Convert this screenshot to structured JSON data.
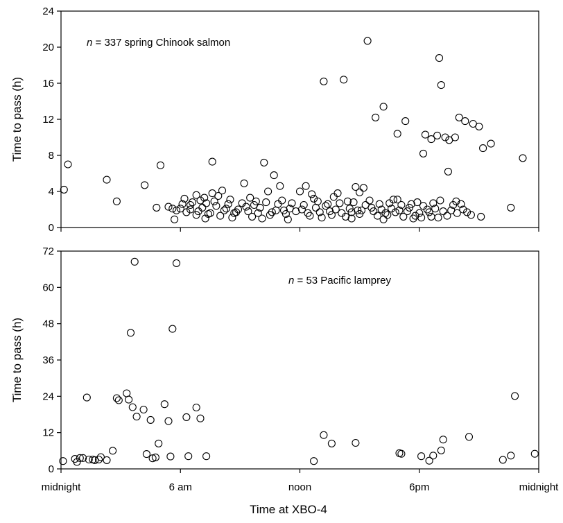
{
  "xlabel": "Time at XBO-4",
  "x_tick_labels": [
    {
      "value": 0,
      "label": "midnight"
    },
    {
      "value": 6,
      "label": "6 am"
    },
    {
      "value": 12,
      "label": "noon"
    },
    {
      "value": 18,
      "label": "6pm"
    },
    {
      "value": 24,
      "label": "midnight"
    }
  ],
  "chart_data": [
    {
      "type": "scatter",
      "ylabel": "Time to pass (h)",
      "annotation": {
        "n_label": "n",
        "text": " = 337 spring Chinook salmon"
      },
      "xlim": [
        0,
        24
      ],
      "ylim": [
        0,
        24
      ],
      "y_ticks": [
        0,
        4,
        8,
        12,
        16,
        20,
        24
      ],
      "x": [
        0.15,
        0.35,
        2.3,
        2.8,
        4.2,
        4.8,
        5.0,
        5.6,
        5.8,
        6.2,
        6.5,
        6.8,
        7.2,
        7.6,
        7.9,
        8.1,
        9.5,
        10.2,
        10.4,
        11.0,
        12.0,
        12.6,
        13.2,
        13.9,
        14.2,
        14.8,
        15.2,
        15.4,
        15.8,
        16.2,
        16.9,
        17.3,
        18.3,
        18.6,
        18.9,
        19.0,
        19.1,
        19.3,
        19.5,
        19.8,
        20.0,
        20.3,
        20.7,
        21.0,
        21.2,
        21.6,
        22.6,
        23.2,
        6.8,
        7.4,
        8.0,
        8.7,
        9.6,
        10.5,
        11.3,
        12.5,
        13.6,
        14.3,
        15.0,
        15.9,
        16.4,
        17.2,
        17.8,
        18.1,
        18.6,
        19.4,
        20.6,
        21.1,
        5.4,
        6.0,
        6.5,
        7.1,
        7.8,
        8.3,
        8.9,
        9.3,
        10.0,
        10.8,
        11.5,
        12.1,
        12.8,
        13.3,
        13.8,
        14.5,
        14.9,
        15.6,
        16.1,
        16.6,
        17.0,
        17.5,
        18.4,
        18.8,
        19.6,
        20.2,
        6.3,
        6.9,
        7.5,
        8.2,
        8.8,
        9.4,
        9.9,
        10.6,
        11.2,
        11.8,
        12.4,
        13.0,
        13.5,
        14.1,
        14.6,
        15.1,
        15.7,
        16.3,
        16.8,
        17.4,
        18.0,
        18.5,
        19.2,
        19.9,
        20.4,
        6.1,
        6.6,
        7.3,
        7.7,
        8.4,
        9.1,
        9.7,
        10.3,
        10.9,
        11.6,
        12.2,
        12.9,
        13.4,
        14.0,
        14.7,
        15.3,
        16.0,
        16.5,
        17.1,
        17.6,
        18.2,
        18.7,
        19.7,
        20.1,
        7.0,
        8.5,
        9.8,
        11.1,
        12.7,
        14.4,
        15.5,
        16.7,
        17.9,
        19.05,
        19.85,
        5.7,
        7.25,
        8.6,
        10.1,
        11.4,
        13.1,
        14.6,
        16.2,
        17.7,
        18.95,
        7.6,
        9.2,
        10.7,
        12.3,
        13.7,
        15.0,
        16.9,
        18.2,
        19.45
      ],
      "y": [
        4.2,
        7.0,
        5.3,
        2.9,
        4.7,
        2.2,
        6.9,
        2.1,
        1.9,
        3.2,
        2.5,
        3.6,
        3.3,
        3.8,
        3.5,
        4.1,
        3.3,
        7.2,
        4.0,
        4.6,
        4.0,
        3.7,
        16.2,
        3.8,
        16.4,
        4.5,
        4.4,
        20.7,
        12.2,
        13.4,
        10.4,
        11.8,
        10.3,
        9.8,
        10.2,
        18.8,
        15.8,
        10.0,
        9.7,
        10.0,
        12.2,
        11.8,
        11.5,
        11.2,
        8.8,
        9.3,
        2.2,
        7.7,
        1.4,
        1.5,
        1.3,
        1.6,
        1.2,
        1.4,
        1.5,
        1.3,
        1.4,
        1.2,
        1.5,
        1.3,
        1.4,
        1.2,
        1.3,
        1.1,
        1.2,
        1.3,
        1.4,
        1.2,
        2.3,
        2.1,
        2.0,
        2.2,
        2.4,
        2.1,
        2.0,
        2.3,
        2.2,
        1.9,
        2.1,
        2.0,
        2.2,
        2.4,
        2.0,
        2.1,
        1.9,
        2.2,
        2.0,
        2.1,
        1.9,
        2.2,
        2.0,
        2.1,
        1.9,
        2.0,
        1.7,
        1.8,
        1.6,
        1.9,
        1.7,
        1.8,
        1.6,
        1.7,
        1.9,
        1.8,
        1.6,
        1.7,
        1.8,
        1.6,
        1.7,
        1.9,
        1.8,
        1.6,
        1.7,
        1.8,
        1.6,
        1.7,
        1.8,
        1.6,
        1.7,
        2.6,
        2.8,
        2.7,
        2.9,
        2.6,
        2.7,
        2.5,
        2.8,
        2.6,
        2.7,
        2.5,
        2.9,
        2.6,
        2.7,
        2.8,
        2.5,
        2.6,
        2.7,
        2.5,
        2.6,
        2.4,
        2.7,
        2.5,
        2.6,
        3.0,
        3.1,
        2.9,
        3.0,
        3.2,
        2.9,
        3.0,
        3.1,
        2.8,
        3.0,
        2.9,
        0.9,
        1.0,
        1.1,
        1.0,
        0.9,
        1.1,
        1.0,
        0.9,
        1.0,
        1.1,
        7.3,
        4.9,
        5.8,
        4.6,
        3.4,
        3.9,
        3.1,
        8.2,
        6.2
      ]
    },
    {
      "type": "scatter",
      "ylabel": "Time to pass (h)",
      "annotation": {
        "n_label": "n",
        "text": " = 53 Pacific lamprey"
      },
      "xlim": [
        0,
        24
      ],
      "ylim": [
        0,
        72
      ],
      "y_ticks": [
        0,
        12,
        24,
        36,
        48,
        60,
        72
      ],
      "x": [
        0.1,
        0.7,
        0.8,
        0.95,
        1.1,
        1.4,
        1.6,
        1.7,
        1.9,
        2.3,
        1.3,
        2.8,
        2.9,
        3.3,
        3.4,
        3.6,
        3.8,
        4.15,
        4.5,
        3.5,
        3.7,
        4.3,
        4.6,
        4.9,
        5.2,
        5.4,
        5.6,
        5.8,
        6.3,
        6.4,
        6.8,
        7.0,
        7.3,
        12.7,
        13.2,
        13.6,
        14.8,
        17.0,
        17.1,
        18.7,
        19.1,
        19.2,
        20.5,
        22.2,
        22.6,
        22.8,
        23.8,
        2.0,
        2.6,
        4.75,
        5.5,
        18.1,
        18.5
      ],
      "y": [
        2.6,
        3.3,
        2.3,
        3.6,
        3.6,
        3.1,
        3.1,
        2.9,
        3.1,
        2.9,
        23.6,
        23.4,
        22.7,
        25.0,
        22.9,
        20.4,
        17.3,
        19.6,
        16.2,
        45.0,
        68.5,
        4.9,
        3.5,
        8.4,
        21.4,
        15.8,
        46.3,
        68.0,
        17.1,
        4.2,
        20.3,
        16.7,
        4.2,
        2.6,
        11.2,
        8.4,
        8.6,
        5.2,
        5.0,
        4.4,
        6.1,
        9.7,
        10.6,
        3.0,
        4.4,
        24.1,
        5.0,
        3.9,
        6.0,
        3.8,
        4.1,
        4.2,
        2.7
      ]
    }
  ]
}
